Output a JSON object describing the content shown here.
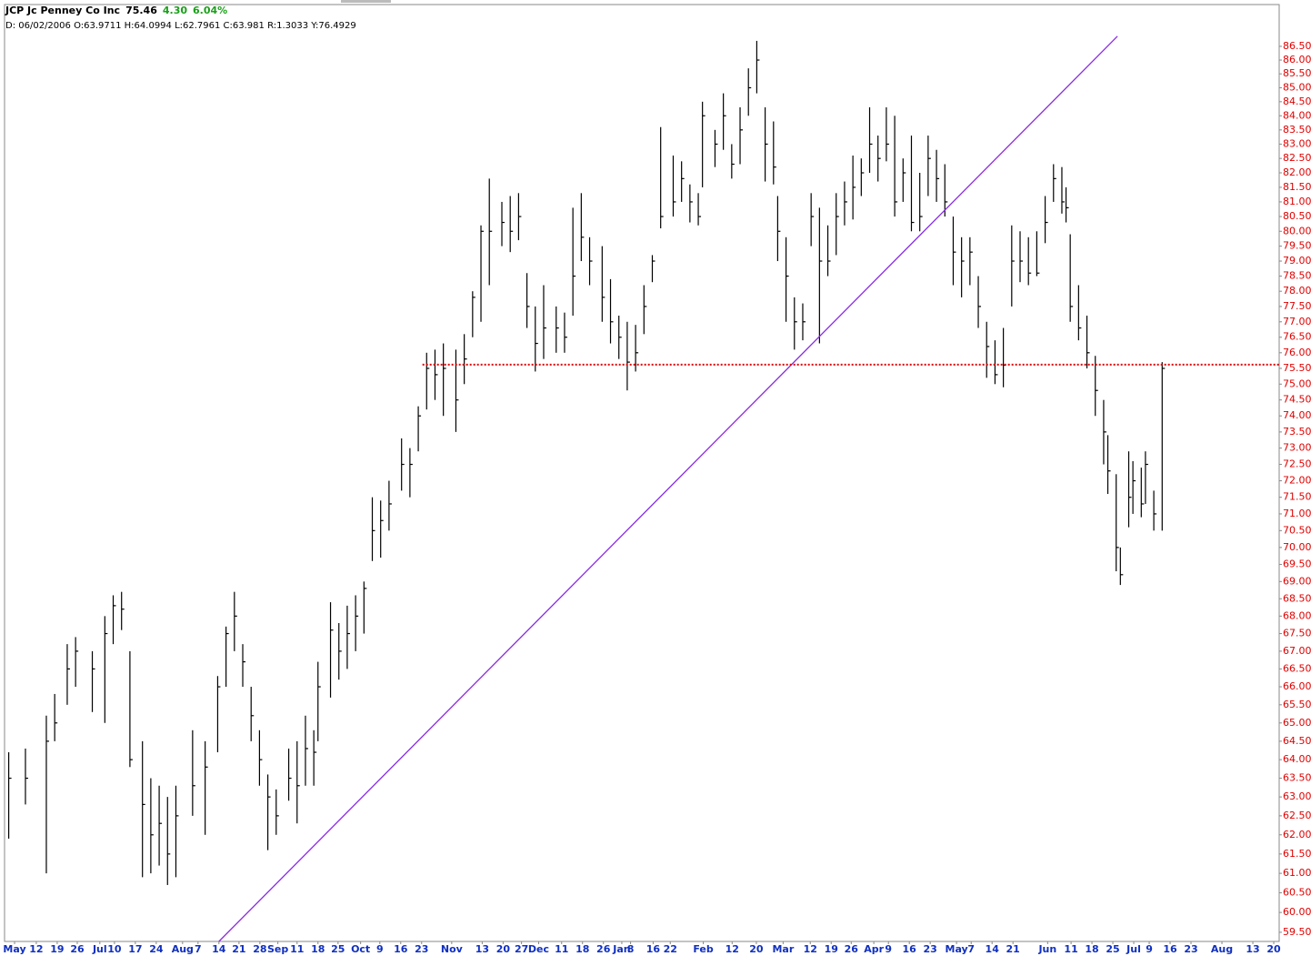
{
  "chart_data": {
    "type": "ohlc",
    "title": "JCP Jc Penney Co Inc",
    "last": "75.46",
    "change": "4.30",
    "change_pct": "6.04%",
    "info": "D: 06/02/2006 O:63.9711 H:64.0994 L:62.7961 C:63.981 R:1.3033 Y:76.4929",
    "log_scale": true,
    "bar_color": "#000000",
    "label_color": "#e00000",
    "xlim": [
      -1,
      304
    ],
    "ylim": [
      59.27,
      88.04
    ],
    "x": [
      0,
      4,
      9,
      11,
      14,
      16,
      20,
      23,
      25,
      27,
      29,
      32,
      34,
      36,
      38,
      40,
      44,
      47,
      50,
      52,
      54,
      56,
      58,
      60,
      62,
      64,
      67,
      69,
      71,
      73,
      74,
      77,
      79,
      81,
      83,
      85,
      87,
      89,
      91,
      94,
      96,
      98,
      100,
      102,
      104,
      107,
      109,
      111,
      113,
      115,
      118,
      120,
      122,
      124,
      126,
      128,
      131,
      133,
      135,
      137,
      139,
      142,
      144,
      146,
      148,
      150,
      152,
      154,
      156,
      159,
      161,
      163,
      165,
      166,
      169,
      171,
      173,
      175,
      177,
      179,
      181,
      183,
      184,
      186,
      188,
      190,
      192,
      194,
      196,
      198,
      200,
      202,
      204,
      206,
      208,
      210,
      212,
      214,
      216,
      218,
      220,
      222,
      224,
      226,
      228,
      230,
      232,
      234,
      236,
      238,
      240,
      242,
      244,
      246,
      248,
      250,
      252,
      253,
      254,
      256,
      258,
      260,
      262,
      263,
      265,
      266,
      268,
      269,
      271,
      272,
      274,
      276
    ],
    "high": [
      64.2,
      64.3,
      65.2,
      65.8,
      67.2,
      67.4,
      67.0,
      68.0,
      68.6,
      68.7,
      67.0,
      64.5,
      63.5,
      63.3,
      63.0,
      63.3,
      64.8,
      64.5,
      66.3,
      67.7,
      68.7,
      67.2,
      66.0,
      64.8,
      63.6,
      63.2,
      64.3,
      64.5,
      65.2,
      64.8,
      66.7,
      68.4,
      67.8,
      68.3,
      68.6,
      69.0,
      71.5,
      71.4,
      72.0,
      73.3,
      73.0,
      74.3,
      76.0,
      76.1,
      76.3,
      76.1,
      76.6,
      78.0,
      80.2,
      81.8,
      81.0,
      81.2,
      81.3,
      78.6,
      77.5,
      78.2,
      77.5,
      77.3,
      80.8,
      81.3,
      79.8,
      79.5,
      78.4,
      77.2,
      77.0,
      76.9,
      78.2,
      79.2,
      83.6,
      82.6,
      82.4,
      81.6,
      81.3,
      84.5,
      83.5,
      84.8,
      83.0,
      84.3,
      85.7,
      86.7,
      84.3,
      83.8,
      81.2,
      79.8,
      77.8,
      77.6,
      81.3,
      80.8,
      80.2,
      81.3,
      81.7,
      82.6,
      82.5,
      84.3,
      83.3,
      84.3,
      84.0,
      82.5,
      83.3,
      82.0,
      83.3,
      82.8,
      82.3,
      80.5,
      79.8,
      79.8,
      78.5,
      77.0,
      76.4,
      76.8,
      80.2,
      80.0,
      79.8,
      80.0,
      81.2,
      82.3,
      82.2,
      81.5,
      79.9,
      78.2,
      77.2,
      75.9,
      74.5,
      73.4,
      72.2,
      70.0,
      72.9,
      72.6,
      72.4,
      72.9,
      71.7,
      75.7
    ],
    "low": [
      61.9,
      62.8,
      61.0,
      64.5,
      65.5,
      66.0,
      65.3,
      65.0,
      67.2,
      67.6,
      63.8,
      60.9,
      61.0,
      61.2,
      60.7,
      60.9,
      62.5,
      62.0,
      64.2,
      66.0,
      67.0,
      66.0,
      64.5,
      63.3,
      61.6,
      62.0,
      62.9,
      62.3,
      63.3,
      63.3,
      64.5,
      65.7,
      66.2,
      66.5,
      67.0,
      67.5,
      69.6,
      69.7,
      70.5,
      71.7,
      71.5,
      72.9,
      74.2,
      74.5,
      74.0,
      73.5,
      75.0,
      76.5,
      77.0,
      78.2,
      79.5,
      79.3,
      79.7,
      76.8,
      75.4,
      75.8,
      76.0,
      76.0,
      77.2,
      79.0,
      78.2,
      77.0,
      76.3,
      75.8,
      74.8,
      75.4,
      76.6,
      78.3,
      80.1,
      80.5,
      81.0,
      80.3,
      80.2,
      81.5,
      82.2,
      82.8,
      81.8,
      82.3,
      84.0,
      84.8,
      81.7,
      81.6,
      79.0,
      77.0,
      76.1,
      76.4,
      79.5,
      76.3,
      78.5,
      79.2,
      80.2,
      80.4,
      81.2,
      82.0,
      81.7,
      82.4,
      80.5,
      81.0,
      80.0,
      80.0,
      81.2,
      81.0,
      80.5,
      78.2,
      77.8,
      78.2,
      76.8,
      75.2,
      75.0,
      74.9,
      77.5,
      78.3,
      78.2,
      78.5,
      79.6,
      81.0,
      80.6,
      80.3,
      77.0,
      76.4,
      75.5,
      74.0,
      72.5,
      71.6,
      69.3,
      68.9,
      70.6,
      71.0,
      70.9,
      71.3,
      70.5,
      70.5
    ],
    "close": [
      63.5,
      63.5,
      64.5,
      65.0,
      66.5,
      67.0,
      66.5,
      67.5,
      68.3,
      68.2,
      64.0,
      62.8,
      62.0,
      62.3,
      61.5,
      62.5,
      63.3,
      63.8,
      66.0,
      67.5,
      68.0,
      66.7,
      65.2,
      64.0,
      63.0,
      62.5,
      63.5,
      63.3,
      64.3,
      64.2,
      66.0,
      67.6,
      67.0,
      67.5,
      68.0,
      68.8,
      70.5,
      70.8,
      71.3,
      72.5,
      72.5,
      74.0,
      75.5,
      75.3,
      75.5,
      74.5,
      75.8,
      77.8,
      80.0,
      80.0,
      80.3,
      80.0,
      80.5,
      77.5,
      76.3,
      76.8,
      76.8,
      76.5,
      78.5,
      79.8,
      79.0,
      77.8,
      77.0,
      76.5,
      75.7,
      76.0,
      77.5,
      79.0,
      80.5,
      81.0,
      81.8,
      81.0,
      80.5,
      84.0,
      83.0,
      84.0,
      82.3,
      83.5,
      85.0,
      86.0,
      83.0,
      82.2,
      80.0,
      78.5,
      77.0,
      77.0,
      80.5,
      79.0,
      79.0,
      80.5,
      81.0,
      81.5,
      82.0,
      83.0,
      82.5,
      83.0,
      81.0,
      82.0,
      80.3,
      80.5,
      82.5,
      81.8,
      81.0,
      79.3,
      79.0,
      79.3,
      77.5,
      76.2,
      75.3,
      75.6,
      79.0,
      79.0,
      78.6,
      78.6,
      80.3,
      81.8,
      81.0,
      80.8,
      77.5,
      76.8,
      76.0,
      74.8,
      73.5,
      72.3,
      70.0,
      69.2,
      71.5,
      72.0,
      71.3,
      72.5,
      71.0,
      75.5
    ],
    "trendline": {
      "x": [
        50.3,
        265.3
      ],
      "y": [
        59.27,
        86.87
      ],
      "color": "#8a2be2"
    },
    "hline": {
      "x": [
        99,
        304
      ],
      "y": 75.62,
      "color": "#e00000"
    },
    "yticks": [
      {
        "value": 59.5,
        "label": "59.50"
      },
      {
        "value": 60,
        "label": "60.00"
      },
      {
        "value": 60.5,
        "label": "60.50"
      },
      {
        "value": 61,
        "label": "61.00"
      },
      {
        "value": 61.5,
        "label": "61.50"
      },
      {
        "value": 62,
        "label": "62.00"
      },
      {
        "value": 62.5,
        "label": "62.50"
      },
      {
        "value": 63,
        "label": "63.00"
      },
      {
        "value": 63.5,
        "label": "63.50"
      },
      {
        "value": 64,
        "label": "64.00"
      },
      {
        "value": 64.5,
        "label": "64.50"
      },
      {
        "value": 65,
        "label": "65.00"
      },
      {
        "value": 65.5,
        "label": "65.50"
      },
      {
        "value": 66,
        "label": "66.00"
      },
      {
        "value": 66.5,
        "label": "66.50"
      },
      {
        "value": 67,
        "label": "67.00"
      },
      {
        "value": 67.5,
        "label": "67.50"
      },
      {
        "value": 68,
        "label": "68.00"
      },
      {
        "value": 68.5,
        "label": "68.50"
      },
      {
        "value": 69,
        "label": "69.00"
      },
      {
        "value": 69.5,
        "label": "69.50"
      },
      {
        "value": 70,
        "label": "70.00"
      },
      {
        "value": 70.5,
        "label": "70.50"
      },
      {
        "value": 71,
        "label": "71.00"
      },
      {
        "value": 71.5,
        "label": "71.50"
      },
      {
        "value": 72,
        "label": "72.00"
      },
      {
        "value": 72.5,
        "label": "72.50"
      },
      {
        "value": 73,
        "label": "73.00"
      },
      {
        "value": 73.5,
        "label": "73.50"
      },
      {
        "value": 74,
        "label": "74.00"
      },
      {
        "value": 74.5,
        "label": "74.50"
      },
      {
        "value": 75,
        "label": "75.00"
      },
      {
        "value": 75.5,
        "label": "75.50"
      },
      {
        "value": 76,
        "label": "76.00"
      },
      {
        "value": 76.5,
        "label": "76.50"
      },
      {
        "value": 77,
        "label": "77.00"
      },
      {
        "value": 77.5,
        "label": "77.50"
      },
      {
        "value": 78,
        "label": "78.00"
      },
      {
        "value": 78.5,
        "label": "78.50"
      },
      {
        "value": 79,
        "label": "79.00"
      },
      {
        "value": 79.5,
        "label": "79.50"
      },
      {
        "value": 80,
        "label": "80.00"
      },
      {
        "value": 80.5,
        "label": "80.50"
      },
      {
        "value": 81,
        "label": "81.00"
      },
      {
        "value": 81.5,
        "label": "81.50"
      },
      {
        "value": 82,
        "label": "82.00"
      },
      {
        "value": 82.5,
        "label": "82.50"
      },
      {
        "value": 83,
        "label": "83.00"
      },
      {
        "value": 83.5,
        "label": "83.50"
      },
      {
        "value": 84,
        "label": "84.00"
      },
      {
        "value": 84.5,
        "label": "84.50"
      },
      {
        "value": 85,
        "label": "85.00"
      },
      {
        "value": 85.5,
        "label": "85.50"
      },
      {
        "value": 86,
        "label": "86.00"
      },
      {
        "value": 86.5,
        "label": "86.50"
      }
    ],
    "xticks": [
      {
        "value": 1.4,
        "label": "May"
      },
      {
        "value": 6.6,
        "label": "12"
      },
      {
        "value": 11.6,
        "label": "19"
      },
      {
        "value": 16.4,
        "label": "26"
      },
      {
        "value": 21.8,
        "label": "Jul"
      },
      {
        "value": 25.3,
        "label": "10"
      },
      {
        "value": 30.3,
        "label": "17"
      },
      {
        "value": 35.3,
        "label": "24"
      },
      {
        "value": 41.6,
        "label": "Aug"
      },
      {
        "value": 45.3,
        "label": "7"
      },
      {
        "value": 50.3,
        "label": "14"
      },
      {
        "value": 55.1,
        "label": "21"
      },
      {
        "value": 60.1,
        "label": "28"
      },
      {
        "value": 64.4,
        "label": "Sep"
      },
      {
        "value": 69,
        "label": "11"
      },
      {
        "value": 74,
        "label": "18"
      },
      {
        "value": 78.8,
        "label": "25"
      },
      {
        "value": 84.2,
        "label": "Oct"
      },
      {
        "value": 88.8,
        "label": "9"
      },
      {
        "value": 93.8,
        "label": "16"
      },
      {
        "value": 98.8,
        "label": "23"
      },
      {
        "value": 106,
        "label": "Nov"
      },
      {
        "value": 113.3,
        "label": "13"
      },
      {
        "value": 118.3,
        "label": "20"
      },
      {
        "value": 122.7,
        "label": "27"
      },
      {
        "value": 126.8,
        "label": "Dec"
      },
      {
        "value": 132.3,
        "label": "11"
      },
      {
        "value": 137.3,
        "label": "18"
      },
      {
        "value": 142.3,
        "label": "26"
      },
      {
        "value": 146.7,
        "label": "Jan"
      },
      {
        "value": 148.8,
        "label": "8"
      },
      {
        "value": 154.2,
        "label": "16"
      },
      {
        "value": 158.3,
        "label": "22"
      },
      {
        "value": 166.2,
        "label": "Feb"
      },
      {
        "value": 173.1,
        "label": "12"
      },
      {
        "value": 178.9,
        "label": "20"
      },
      {
        "value": 185.3,
        "label": "Mar"
      },
      {
        "value": 191.8,
        "label": "12"
      },
      {
        "value": 196.8,
        "label": "19"
      },
      {
        "value": 201.6,
        "label": "26"
      },
      {
        "value": 207,
        "label": "Apr"
      },
      {
        "value": 210.5,
        "label": "9"
      },
      {
        "value": 215.5,
        "label": "16"
      },
      {
        "value": 220.5,
        "label": "23"
      },
      {
        "value": 226.8,
        "label": "May"
      },
      {
        "value": 230.3,
        "label": "7"
      },
      {
        "value": 235.3,
        "label": "14"
      },
      {
        "value": 240.3,
        "label": "21"
      },
      {
        "value": 248.6,
        "label": "Jun"
      },
      {
        "value": 254.2,
        "label": "11"
      },
      {
        "value": 259.2,
        "label": "18"
      },
      {
        "value": 264.2,
        "label": "25"
      },
      {
        "value": 269.2,
        "label": "Jul"
      },
      {
        "value": 272.9,
        "label": "9"
      },
      {
        "value": 277.9,
        "label": "16"
      },
      {
        "value": 282.9,
        "label": "23"
      },
      {
        "value": 290.3,
        "label": "Aug"
      },
      {
        "value": 297.7,
        "label": "13"
      },
      {
        "value": 302.7,
        "label": "20"
      }
    ]
  }
}
